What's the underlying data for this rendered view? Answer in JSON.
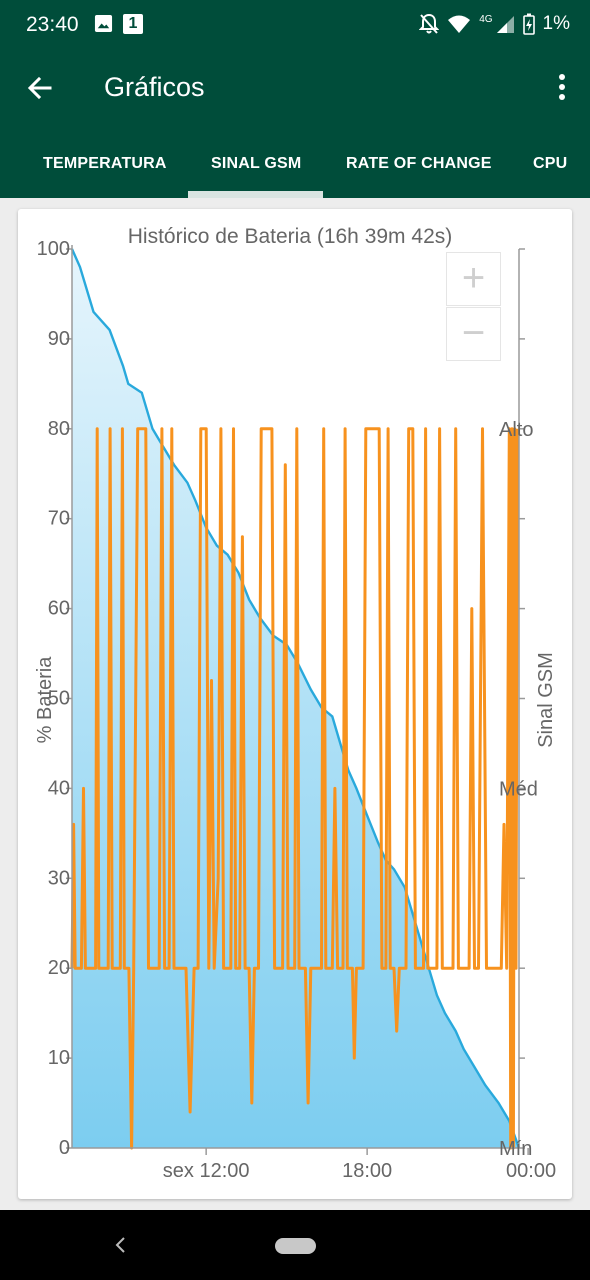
{
  "status": {
    "time": "23:40",
    "notification_count": "1",
    "network_type": "4G",
    "battery": "1%"
  },
  "app_bar": {
    "title": "Gráficos",
    "icons": [
      "arrow-back-icon",
      "more-vert-icon"
    ]
  },
  "tabs": [
    {
      "label": "TEMPERATURA",
      "active": false
    },
    {
      "label": "SINAL GSM",
      "active": true
    },
    {
      "label": "RATE OF CHANGE",
      "active": false
    },
    {
      "label": "CPU",
      "active": false
    }
  ],
  "zoom": {
    "in_label": "+",
    "out_label": "−"
  },
  "colors": {
    "primary": "#004d3a",
    "battery_line": "#29a9dc",
    "signal_line": "#f7921e"
  },
  "chart_data": {
    "type": "area",
    "title": "Histórico de Bateria (16h 39m 42s)",
    "ylabel": "% Bateria",
    "y2label": "Sinal GSM",
    "ylim": [
      0,
      100
    ],
    "y_ticks": [
      "0",
      "10",
      "20",
      "30",
      "40",
      "50",
      "60",
      "70",
      "80",
      "90",
      "100"
    ],
    "y2_ticks": [
      "Mín",
      "Méd",
      "Alto"
    ],
    "x_ticks": [
      {
        "label": "sex 12:00",
        "hour": 12
      },
      {
        "label": "18:00",
        "hour": 18
      },
      {
        "label": "00:00",
        "hour": 24
      }
    ],
    "xlim_hours": [
      7.0,
      23.66
    ],
    "grid": false,
    "series": [
      {
        "name": "% Bateria",
        "points": [
          [
            7.0,
            100
          ],
          [
            7.3,
            98
          ],
          [
            7.8,
            93
          ],
          [
            8.4,
            91
          ],
          [
            8.9,
            87
          ],
          [
            9.1,
            85
          ],
          [
            9.6,
            84
          ],
          [
            10.0,
            80
          ],
          [
            10.4,
            78
          ],
          [
            10.8,
            76
          ],
          [
            11.3,
            74
          ],
          [
            11.6,
            72
          ],
          [
            12.0,
            69
          ],
          [
            12.4,
            67
          ],
          [
            12.8,
            66
          ],
          [
            13.2,
            64
          ],
          [
            13.6,
            61
          ],
          [
            14.0,
            59
          ],
          [
            14.5,
            57
          ],
          [
            15.0,
            56
          ],
          [
            15.4,
            54
          ],
          [
            15.9,
            51
          ],
          [
            16.3,
            49
          ],
          [
            16.7,
            48
          ],
          [
            17.0,
            45
          ],
          [
            17.3,
            42
          ],
          [
            17.6,
            40
          ],
          [
            18.0,
            37
          ],
          [
            18.4,
            34
          ],
          [
            18.7,
            32
          ],
          [
            19.0,
            31
          ],
          [
            19.4,
            29
          ],
          [
            19.7,
            26
          ],
          [
            20.0,
            23
          ],
          [
            20.4,
            19
          ],
          [
            20.6,
            17
          ],
          [
            20.9,
            15
          ],
          [
            21.3,
            13
          ],
          [
            21.6,
            11
          ],
          [
            22.0,
            9
          ],
          [
            22.4,
            7
          ],
          [
            22.9,
            5
          ],
          [
            23.3,
            3
          ],
          [
            23.66,
            0
          ]
        ]
      },
      {
        "name": "Sinal GSM",
        "points": [
          [
            7.0,
            20
          ],
          [
            7.06,
            36
          ],
          [
            7.12,
            20
          ],
          [
            7.35,
            20
          ],
          [
            7.43,
            40
          ],
          [
            7.5,
            20
          ],
          [
            7.88,
            20
          ],
          [
            7.94,
            80
          ],
          [
            8.0,
            20
          ],
          [
            8.35,
            20
          ],
          [
            8.42,
            80
          ],
          [
            8.5,
            20
          ],
          [
            8.8,
            20
          ],
          [
            8.88,
            80
          ],
          [
            8.95,
            20
          ],
          [
            9.12,
            20
          ],
          [
            9.22,
            0
          ],
          [
            9.3,
            20
          ],
          [
            9.45,
            80
          ],
          [
            9.75,
            80
          ],
          [
            9.85,
            20
          ],
          [
            10.25,
            20
          ],
          [
            10.35,
            80
          ],
          [
            10.45,
            20
          ],
          [
            10.62,
            20
          ],
          [
            10.72,
            80
          ],
          [
            10.8,
            20
          ],
          [
            11.25,
            20
          ],
          [
            11.4,
            4
          ],
          [
            11.55,
            20
          ],
          [
            11.7,
            20
          ],
          [
            11.8,
            80
          ],
          [
            12.0,
            80
          ],
          [
            12.1,
            20
          ],
          [
            12.2,
            52
          ],
          [
            12.3,
            20
          ],
          [
            12.45,
            30
          ],
          [
            12.55,
            80
          ],
          [
            12.65,
            20
          ],
          [
            12.92,
            20
          ],
          [
            13.02,
            80
          ],
          [
            13.1,
            20
          ],
          [
            13.25,
            20
          ],
          [
            13.35,
            68
          ],
          [
            13.45,
            20
          ],
          [
            13.6,
            20
          ],
          [
            13.7,
            5
          ],
          [
            13.8,
            20
          ],
          [
            13.95,
            20
          ],
          [
            14.05,
            80
          ],
          [
            14.45,
            80
          ],
          [
            14.55,
            20
          ],
          [
            14.85,
            20
          ],
          [
            14.95,
            76
          ],
          [
            15.05,
            20
          ],
          [
            15.3,
            20
          ],
          [
            15.38,
            80
          ],
          [
            15.46,
            20
          ],
          [
            15.7,
            20
          ],
          [
            15.8,
            5
          ],
          [
            15.9,
            20
          ],
          [
            16.3,
            20
          ],
          [
            16.38,
            80
          ],
          [
            16.46,
            20
          ],
          [
            16.7,
            20
          ],
          [
            16.8,
            40
          ],
          [
            16.9,
            20
          ],
          [
            17.1,
            20
          ],
          [
            17.18,
            80
          ],
          [
            17.26,
            20
          ],
          [
            17.45,
            20
          ],
          [
            17.52,
            10
          ],
          [
            17.6,
            20
          ],
          [
            17.85,
            20
          ],
          [
            17.95,
            80
          ],
          [
            18.45,
            80
          ],
          [
            18.55,
            20
          ],
          [
            18.7,
            20
          ],
          [
            18.78,
            80
          ],
          [
            18.86,
            20
          ],
          [
            19.0,
            20
          ],
          [
            19.1,
            13
          ],
          [
            19.2,
            20
          ],
          [
            19.45,
            20
          ],
          [
            19.55,
            80
          ],
          [
            19.7,
            80
          ],
          [
            19.8,
            20
          ],
          [
            20.1,
            20
          ],
          [
            20.18,
            80
          ],
          [
            20.26,
            20
          ],
          [
            20.6,
            20
          ],
          [
            20.7,
            80
          ],
          [
            20.8,
            20
          ],
          [
            21.2,
            20
          ],
          [
            21.3,
            80
          ],
          [
            21.4,
            20
          ],
          [
            21.8,
            20
          ],
          [
            21.9,
            60
          ],
          [
            22.0,
            20
          ],
          [
            22.15,
            20
          ],
          [
            22.3,
            80
          ],
          [
            22.45,
            20
          ],
          [
            23.0,
            20
          ],
          [
            23.1,
            36
          ],
          [
            23.2,
            20
          ],
          [
            23.3,
            80
          ],
          [
            23.35,
            0
          ],
          [
            23.4,
            80
          ],
          [
            23.45,
            0
          ],
          [
            23.5,
            80
          ],
          [
            23.55,
            20
          ],
          [
            23.6,
            80
          ]
        ]
      }
    ]
  }
}
